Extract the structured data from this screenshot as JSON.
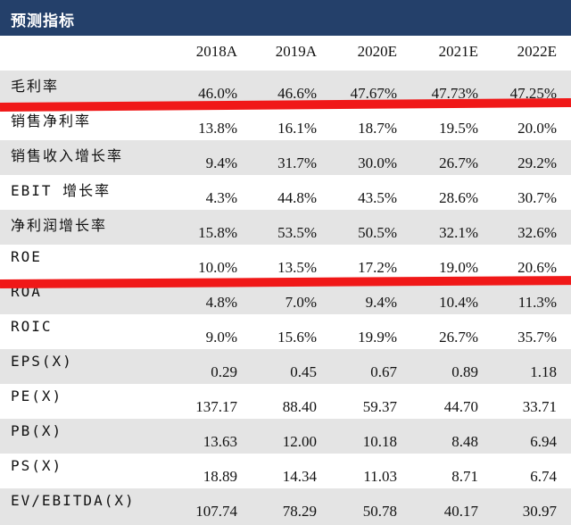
{
  "title": "预测指标",
  "years": [
    "2018A",
    "2019A",
    "2020E",
    "2021E",
    "2022E"
  ],
  "rows": [
    {
      "label": "毛利率",
      "values": [
        "46.0%",
        "46.6%",
        "47.67%",
        "47.73%",
        "47.25%"
      ]
    },
    {
      "label": "销售净利率",
      "values": [
        "13.8%",
        "16.1%",
        "18.7%",
        "19.5%",
        "20.0%"
      ]
    },
    {
      "label": "销售收入增长率",
      "values": [
        "9.4%",
        "31.7%",
        "30.0%",
        "26.7%",
        "29.2%"
      ]
    },
    {
      "label": "EBIT 增长率",
      "values": [
        "4.3%",
        "44.8%",
        "43.5%",
        "28.6%",
        "30.7%"
      ]
    },
    {
      "label": "净利润增长率",
      "values": [
        "15.8%",
        "53.5%",
        "50.5%",
        "32.1%",
        "32.6%"
      ]
    },
    {
      "label": "ROE",
      "values": [
        "10.0%",
        "13.5%",
        "17.2%",
        "19.0%",
        "20.6%"
      ]
    },
    {
      "label": "ROA",
      "values": [
        "4.8%",
        "7.0%",
        "9.4%",
        "10.4%",
        "11.3%"
      ]
    },
    {
      "label": "ROIC",
      "values": [
        "9.0%",
        "15.6%",
        "19.9%",
        "26.7%",
        "35.7%"
      ]
    },
    {
      "label": "EPS(X)",
      "values": [
        "0.29",
        "0.45",
        "0.67",
        "0.89",
        "1.18"
      ]
    },
    {
      "label": "PE(X)",
      "values": [
        "137.17",
        "88.40",
        "59.37",
        "44.70",
        "33.71"
      ]
    },
    {
      "label": "PB(X)",
      "values": [
        "13.63",
        "12.00",
        "10.18",
        "8.48",
        "6.94"
      ]
    },
    {
      "label": "PS(X)",
      "values": [
        "18.89",
        "14.34",
        "11.03",
        "8.71",
        "6.74"
      ]
    },
    {
      "label": "EV/EBITDA(X)",
      "values": [
        "107.74",
        "78.29",
        "50.78",
        "40.17",
        "30.97"
      ]
    }
  ],
  "highlight_color": "#f01818"
}
